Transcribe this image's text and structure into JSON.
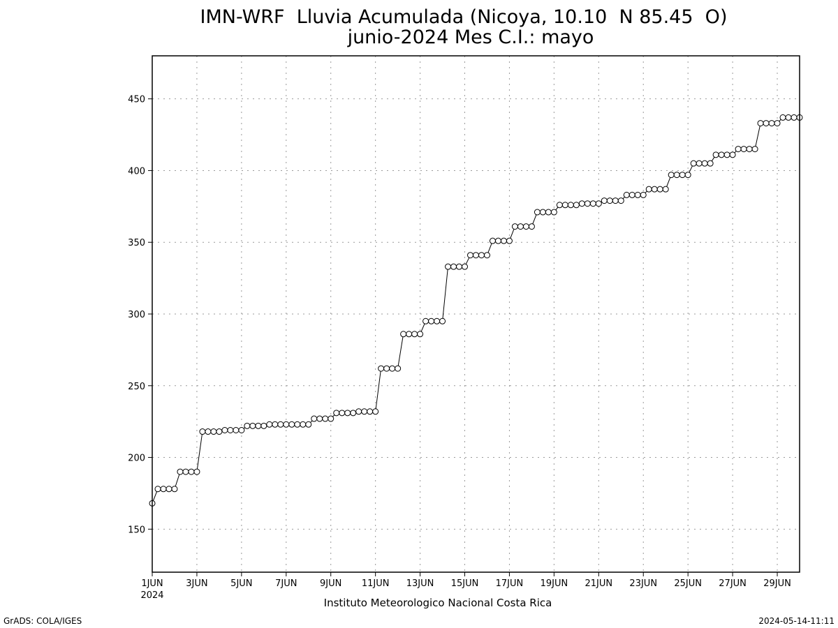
{
  "header": {
    "title_line1": "IMN-WRF  Lluvia Acumulada (Nicoya, 10.10  N 85.45  O)",
    "title_line2": "junio-2024 Mes C.I.: mayo"
  },
  "footer": {
    "credit": "Instituto Meteorologico Nacional Costa Rica",
    "software": "GrADS: COLA/IGES",
    "timestamp": "2024-05-14-11:11"
  },
  "chart_data": {
    "type": "line",
    "title": "IMN-WRF  Lluvia Acumulada (Nicoya, 10.10  N 85.45  O)",
    "subtitle": "junio-2024 Mes C.I.: mayo",
    "xlabel": "",
    "ylabel": "",
    "x_unit": "day of June 2024 (1 = 1JUN 00h)",
    "xlim": [
      1,
      30
    ],
    "ylim": [
      120,
      480
    ],
    "grid": true,
    "yticks": [
      150,
      200,
      250,
      300,
      350,
      400,
      450
    ],
    "xtick_labels": [
      "1JUN",
      "3JUN",
      "5JUN",
      "7JUN",
      "9JUN",
      "11JUN",
      "13JUN",
      "15JUN",
      "17JUN",
      "19JUN",
      "21JUN",
      "23JUN",
      "25JUN",
      "27JUN",
      "29JUN"
    ],
    "xtick_days": [
      1,
      3,
      5,
      7,
      9,
      11,
      13,
      15,
      17,
      19,
      21,
      23,
      25,
      27,
      29
    ],
    "xtick_year": "2024",
    "series": [
      {
        "marker": "open-circle",
        "color": "#000000",
        "x": [
          1.0,
          1.25,
          1.5,
          1.75,
          2.0,
          2.25,
          2.5,
          2.75,
          3.0,
          3.25,
          3.5,
          3.75,
          4.0,
          4.25,
          4.5,
          4.75,
          5.0,
          5.25,
          5.5,
          5.75,
          6.0,
          6.25,
          6.5,
          6.75,
          7.0,
          7.25,
          7.5,
          7.75,
          8.0,
          8.25,
          8.5,
          8.75,
          9.0,
          9.25,
          9.5,
          9.75,
          10.0,
          10.25,
          10.5,
          10.75,
          11.0,
          11.25,
          11.5,
          11.75,
          12.0,
          12.25,
          12.5,
          12.75,
          13.0,
          13.25,
          13.5,
          13.75,
          14.0,
          14.25,
          14.5,
          14.75,
          15.0,
          15.25,
          15.5,
          15.75,
          16.0,
          16.25,
          16.5,
          16.75,
          17.0,
          17.25,
          17.5,
          17.75,
          18.0,
          18.25,
          18.5,
          18.75,
          19.0,
          19.25,
          19.5,
          19.75,
          20.0,
          20.25,
          20.5,
          20.75,
          21.0,
          21.25,
          21.5,
          21.75,
          22.0,
          22.25,
          22.5,
          22.75,
          23.0,
          23.25,
          23.5,
          23.75,
          24.0,
          24.25,
          24.5,
          24.75,
          25.0,
          25.25,
          25.5,
          25.75,
          26.0,
          26.25,
          26.5,
          26.75,
          27.0,
          27.25,
          27.5,
          27.75,
          28.0,
          28.25,
          28.5,
          28.75,
          29.0,
          29.25,
          29.5,
          29.75,
          30.0
        ],
        "y": [
          168,
          178,
          178,
          178,
          178,
          190,
          190,
          190,
          190,
          218,
          218,
          218,
          218,
          219,
          219,
          219,
          219,
          222,
          222,
          222,
          222,
          223,
          223,
          223,
          223,
          223,
          223,
          223,
          223,
          227,
          227,
          227,
          227,
          231,
          231,
          231,
          231,
          232,
          232,
          232,
          232,
          262,
          262,
          262,
          262,
          286,
          286,
          286,
          286,
          295,
          295,
          295,
          295,
          333,
          333,
          333,
          333,
          341,
          341,
          341,
          341,
          351,
          351,
          351,
          351,
          361,
          361,
          361,
          361,
          371,
          371,
          371,
          371,
          376,
          376,
          376,
          376,
          377,
          377,
          377,
          377,
          379,
          379,
          379,
          379,
          383,
          383,
          383,
          383,
          387,
          387,
          387,
          387,
          397,
          397,
          397,
          397,
          405,
          405,
          405,
          405,
          411,
          411,
          411,
          411,
          415,
          415,
          415,
          415,
          433,
          433,
          433,
          433,
          437,
          437,
          437,
          437
        ]
      }
    ]
  }
}
